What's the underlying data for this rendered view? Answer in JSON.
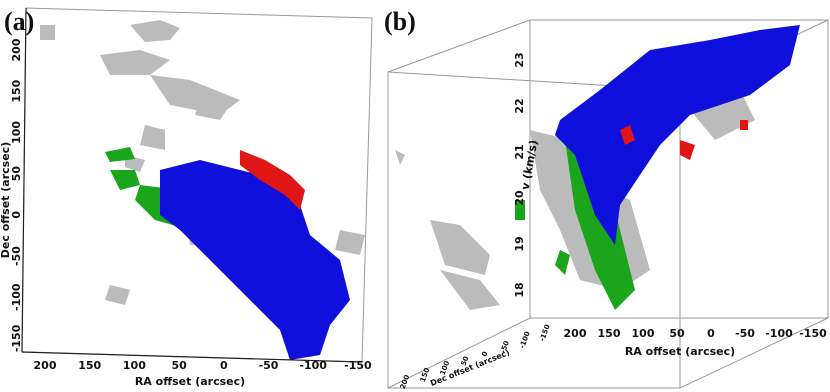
{
  "panels": [
    {
      "label": "(a)",
      "x_axis": {
        "title": "RA offset (arcsec)",
        "ticks": [
          "200",
          "150",
          "100",
          "50",
          "0",
          "-50",
          "-100",
          "-150"
        ]
      },
      "y_axis": {
        "title": "Dec offset (arcsec)",
        "ticks": [
          "200",
          "150",
          "100",
          "50",
          "0",
          "-50",
          "-100",
          "-150"
        ]
      }
    },
    {
      "label": "(b)",
      "x_axis": {
        "title": "RA offset (arcsec)",
        "ticks": [
          "200",
          "150",
          "100",
          "50",
          "0",
          "-50",
          "-100",
          "-150"
        ]
      },
      "y_axis": {
        "title": "Dec offset (arcsec)",
        "ticks": [
          "200",
          "150",
          "100",
          "50",
          "0",
          "-50",
          "-100",
          "-150"
        ]
      },
      "z_axis": {
        "title": "v (km/s)",
        "ticks": [
          "18",
          "19",
          "20",
          "21",
          "22",
          "23"
        ]
      }
    }
  ]
}
